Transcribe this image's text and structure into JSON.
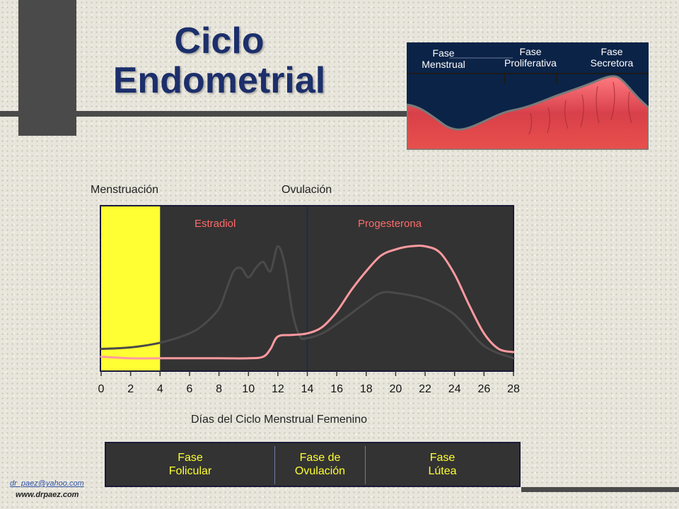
{
  "title": {
    "line1": "Ciclo",
    "line2": "Endometrial"
  },
  "inset": {
    "phases": [
      "Fase Menstrual",
      "Fase Proliferativa",
      "Fase Secretora"
    ],
    "colors": {
      "sky": "#0b2347",
      "tissue": "#d8404a",
      "tissue_light": "#ff7a80"
    }
  },
  "markers": {
    "menstruation": "Menstruación",
    "ovulation": "Ovulación"
  },
  "chart_data": {
    "type": "line",
    "xlabel": "Días del Ciclo Menstrual Femenino",
    "ylabel": "",
    "xlim": [
      0,
      28
    ],
    "ticks": [
      0,
      2,
      4,
      6,
      8,
      10,
      12,
      14,
      16,
      18,
      20,
      22,
      24,
      26,
      28
    ],
    "menstruation_days": [
      0,
      4
    ],
    "ovulation_day": 14,
    "series": [
      {
        "name": "Estradiol",
        "color": "#4a4a4a",
        "x": [
          0,
          2,
          4,
          6,
          7,
          8,
          8.5,
          9,
          9.5,
          10,
          10.5,
          11,
          11.5,
          12,
          12.5,
          13,
          13.5,
          14,
          15,
          16,
          18,
          19,
          20,
          22,
          24,
          26,
          28
        ],
        "y": [
          0.12,
          0.13,
          0.16,
          0.22,
          0.28,
          0.38,
          0.5,
          0.62,
          0.64,
          0.58,
          0.64,
          0.68,
          0.62,
          0.78,
          0.65,
          0.35,
          0.2,
          0.19,
          0.22,
          0.28,
          0.42,
          0.48,
          0.48,
          0.44,
          0.34,
          0.14,
          0.06
        ]
      },
      {
        "name": "Progesterona",
        "color": "#ff9aa0",
        "x": [
          0,
          2,
          4,
          6,
          8,
          10,
          11,
          11.5,
          12,
          13,
          14,
          15,
          16,
          17,
          18,
          19,
          20,
          21,
          22,
          23,
          24,
          25,
          26,
          27,
          28
        ],
        "y": [
          0.07,
          0.06,
          0.06,
          0.06,
          0.06,
          0.06,
          0.07,
          0.12,
          0.2,
          0.21,
          0.22,
          0.26,
          0.36,
          0.5,
          0.62,
          0.72,
          0.76,
          0.78,
          0.78,
          0.74,
          0.6,
          0.4,
          0.22,
          0.12,
          0.1
        ]
      }
    ]
  },
  "phases": [
    {
      "line1": "Fase",
      "line2": "Folicular"
    },
    {
      "line1": "Fase de",
      "line2": "Ovulación"
    },
    {
      "line1": "Fase",
      "line2": "Lútea"
    }
  ],
  "credits": {
    "email": "dr_paez@yahoo.com",
    "website": "www.drpaez.com"
  }
}
